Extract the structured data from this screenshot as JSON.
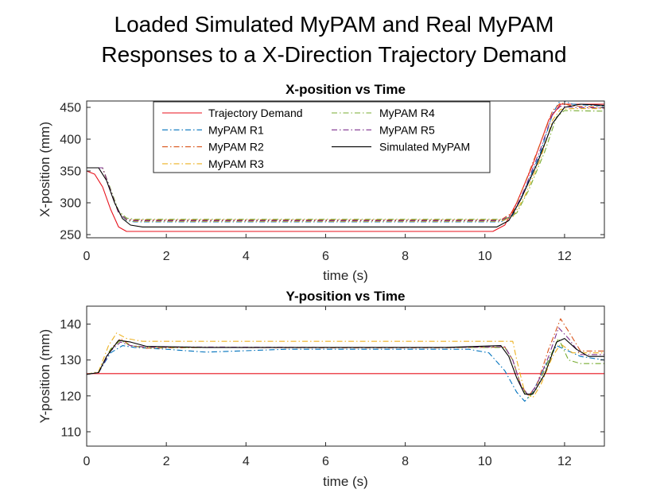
{
  "figure": {
    "title_line1": "Loaded Simulated MyPAM and Real MyPAM",
    "title_line2": "Responses to a X-Direction Trajectory Demand"
  },
  "colors": {
    "Trajectory Demand": "#e8121c",
    "MyPAM R1": "#0072bd",
    "MyPAM R2": "#d95319",
    "MyPAM R3": "#edb120",
    "MyPAM R4": "#77ac30",
    "MyPAM R5": "#7e2f8e",
    "Simulated MyPAM": "#000000"
  },
  "chart_data": [
    {
      "type": "line",
      "title": "X-position vs Time",
      "xlabel": "time (s)",
      "ylabel": "X-position (mm)",
      "xlim": [
        0,
        13
      ],
      "ylim": [
        245,
        460
      ],
      "xticks": [
        0,
        2,
        4,
        6,
        8,
        10,
        12
      ],
      "yticks": [
        250,
        300,
        350,
        400,
        450
      ],
      "grid": false,
      "legend": "top-center, two columns",
      "series": [
        {
          "name": "Trajectory Demand",
          "style": "solid",
          "points": [
            [
              0,
              350
            ],
            [
              0.2,
              345
            ],
            [
              0.4,
              325
            ],
            [
              0.6,
              290
            ],
            [
              0.8,
              262
            ],
            [
              1.0,
              255
            ],
            [
              10.2,
              255
            ],
            [
              10.5,
              265
            ],
            [
              10.8,
              300
            ],
            [
              11.2,
              360
            ],
            [
              11.6,
              430
            ],
            [
              11.9,
              455
            ],
            [
              13,
              455
            ]
          ]
        },
        {
          "name": "MyPAM R1",
          "style": "dashdot",
          "points": [
            [
              0,
              355
            ],
            [
              0.4,
              355
            ],
            [
              0.6,
              320
            ],
            [
              0.8,
              285
            ],
            [
              1.0,
              272
            ],
            [
              1.2,
              270
            ],
            [
              10.4,
              270
            ],
            [
              10.7,
              280
            ],
            [
              11.0,
              320
            ],
            [
              11.4,
              380
            ],
            [
              11.7,
              440
            ],
            [
              11.9,
              462
            ],
            [
              12.2,
              455
            ],
            [
              13,
              452
            ]
          ]
        },
        {
          "name": "MyPAM R2",
          "style": "dashdot",
          "points": [
            [
              0,
              355
            ],
            [
              0.4,
              355
            ],
            [
              0.6,
              318
            ],
            [
              0.8,
              284
            ],
            [
              1.0,
              274
            ],
            [
              1.2,
              273
            ],
            [
              10.4,
              273
            ],
            [
              10.7,
              285
            ],
            [
              11.0,
              330
            ],
            [
              11.4,
              395
            ],
            [
              11.7,
              445
            ],
            [
              11.9,
              457
            ],
            [
              12.2,
              452
            ],
            [
              13,
              450
            ]
          ]
        },
        {
          "name": "MyPAM R3",
          "style": "dashdot",
          "points": [
            [
              0,
              355
            ],
            [
              0.4,
              355
            ],
            [
              0.6,
              320
            ],
            [
              0.8,
              285
            ],
            [
              1.0,
              273
            ],
            [
              1.2,
              271
            ],
            [
              10.4,
              271
            ],
            [
              10.7,
              278
            ],
            [
              11.0,
              310
            ],
            [
              11.4,
              370
            ],
            [
              11.7,
              430
            ],
            [
              11.9,
              447
            ],
            [
              12.2,
              448
            ],
            [
              13,
              448
            ]
          ]
        },
        {
          "name": "MyPAM R4",
          "style": "dashdot",
          "points": [
            [
              0,
              355
            ],
            [
              0.4,
              355
            ],
            [
              0.6,
              322
            ],
            [
              0.8,
              287
            ],
            [
              1.0,
              276
            ],
            [
              1.2,
              274
            ],
            [
              10.5,
              274
            ],
            [
              10.8,
              284
            ],
            [
              11.1,
              320
            ],
            [
              11.5,
              380
            ],
            [
              11.8,
              435
            ],
            [
              12.0,
              445
            ],
            [
              13,
              444
            ]
          ]
        },
        {
          "name": "MyPAM R5",
          "style": "dashdot",
          "points": [
            [
              0,
              355
            ],
            [
              0.4,
              355
            ],
            [
              0.6,
              320
            ],
            [
              0.8,
              284
            ],
            [
              1.0,
              274
            ],
            [
              1.2,
              272
            ],
            [
              10.4,
              272
            ],
            [
              10.7,
              282
            ],
            [
              11.0,
              322
            ],
            [
              11.4,
              385
            ],
            [
              11.7,
              440
            ],
            [
              11.9,
              452
            ],
            [
              12.2,
              450
            ],
            [
              13,
              449
            ]
          ]
        },
        {
          "name": "Simulated MyPAM",
          "style": "solid",
          "points": [
            [
              0,
              355
            ],
            [
              0.3,
              355
            ],
            [
              0.5,
              335
            ],
            [
              0.7,
              300
            ],
            [
              0.9,
              275
            ],
            [
              1.1,
              265
            ],
            [
              1.4,
              262
            ],
            [
              10.3,
              262
            ],
            [
              10.6,
              272
            ],
            [
              10.9,
              305
            ],
            [
              11.3,
              360
            ],
            [
              11.7,
              425
            ],
            [
              12.0,
              450
            ],
            [
              12.4,
              455
            ],
            [
              13,
              453
            ]
          ]
        }
      ]
    },
    {
      "type": "line",
      "title": "Y-position vs Time",
      "xlabel": "time (s)",
      "ylabel": "Y-position (mm)",
      "xlim": [
        0,
        13
      ],
      "ylim": [
        106,
        145
      ],
      "xticks": [
        0,
        2,
        4,
        6,
        8,
        10,
        12
      ],
      "yticks": [
        110,
        120,
        130,
        140
      ],
      "grid": false,
      "series": [
        {
          "name": "Trajectory Demand",
          "style": "solid",
          "points": [
            [
              0,
              126.2
            ],
            [
              13,
              126.2
            ]
          ]
        },
        {
          "name": "MyPAM R1",
          "style": "dashdot",
          "points": [
            [
              0,
              126
            ],
            [
              0.3,
              126.5
            ],
            [
              0.6,
              132
            ],
            [
              0.9,
              134
            ],
            [
              1.2,
              133.5
            ],
            [
              2,
              133
            ],
            [
              3,
              132.2
            ],
            [
              5,
              133
            ],
            [
              8,
              133
            ],
            [
              9.6,
              133
            ],
            [
              10.1,
              132
            ],
            [
              10.5,
              127
            ],
            [
              10.8,
              121
            ],
            [
              11.0,
              118.5
            ],
            [
              11.2,
              121
            ],
            [
              11.5,
              128
            ],
            [
              11.8,
              134
            ],
            [
              12.0,
              133
            ],
            [
              12.4,
              131
            ],
            [
              13,
              130
            ]
          ]
        },
        {
          "name": "MyPAM R2",
          "style": "dashdot",
          "points": [
            [
              0,
              126
            ],
            [
              0.3,
              126.5
            ],
            [
              0.6,
              133
            ],
            [
              0.85,
              136
            ],
            [
              1.1,
              134
            ],
            [
              1.5,
              133.3
            ],
            [
              3,
              133.5
            ],
            [
              6,
              133.4
            ],
            [
              9,
              133.4
            ],
            [
              10.5,
              133.6
            ],
            [
              10.7,
              130
            ],
            [
              10.9,
              123
            ],
            [
              11.1,
              120
            ],
            [
              11.3,
              123
            ],
            [
              11.6,
              133
            ],
            [
              11.9,
              141.5
            ],
            [
              12.1,
              138
            ],
            [
              12.4,
              132.5
            ],
            [
              13,
              132.5
            ]
          ]
        },
        {
          "name": "MyPAM R3",
          "style": "dashdot",
          "points": [
            [
              0,
              126
            ],
            [
              0.3,
              126.8
            ],
            [
              0.55,
              134
            ],
            [
              0.75,
              137.5
            ],
            [
              1.0,
              136
            ],
            [
              1.4,
              135.2
            ],
            [
              3,
              135.2
            ],
            [
              6,
              135.2
            ],
            [
              9,
              135.2
            ],
            [
              10.7,
              135.2
            ],
            [
              10.8,
              130
            ],
            [
              11.0,
              121
            ],
            [
              11.2,
              119.5
            ],
            [
              11.4,
              123
            ],
            [
              11.7,
              131
            ],
            [
              11.9,
              134.5
            ],
            [
              12.2,
              132
            ],
            [
              13,
              132
            ]
          ]
        },
        {
          "name": "MyPAM R4",
          "style": "dashdot",
          "points": [
            [
              0,
              126
            ],
            [
              0.3,
              126.6
            ],
            [
              0.6,
              133
            ],
            [
              0.85,
              135.5
            ],
            [
              1.1,
              134
            ],
            [
              1.5,
              133.5
            ],
            [
              3,
              133.5
            ],
            [
              6,
              133.5
            ],
            [
              9,
              133.5
            ],
            [
              10.5,
              133.5
            ],
            [
              10.7,
              130
            ],
            [
              10.9,
              123
            ],
            [
              11.1,
              119.5
            ],
            [
              11.3,
              122
            ],
            [
              11.6,
              130
            ],
            [
              11.85,
              136
            ],
            [
              12.1,
              130
            ],
            [
              12.4,
              129
            ],
            [
              13,
              129
            ]
          ]
        },
        {
          "name": "MyPAM R5",
          "style": "dashdot",
          "points": [
            [
              0,
              126
            ],
            [
              0.3,
              126.5
            ],
            [
              0.6,
              132.5
            ],
            [
              0.85,
              135
            ],
            [
              1.1,
              134
            ],
            [
              1.5,
              133.6
            ],
            [
              3,
              133.6
            ],
            [
              6,
              133.5
            ],
            [
              9,
              133.5
            ],
            [
              10.5,
              133.7
            ],
            [
              10.7,
              130
            ],
            [
              10.9,
              123
            ],
            [
              11.1,
              120
            ],
            [
              11.3,
              123
            ],
            [
              11.6,
              131
            ],
            [
              11.85,
              139
            ],
            [
              12.1,
              136
            ],
            [
              12.4,
              131.5
            ],
            [
              13,
              131.5
            ]
          ]
        },
        {
          "name": "Simulated MyPAM",
          "style": "solid",
          "points": [
            [
              0,
              126
            ],
            [
              0.3,
              126.5
            ],
            [
              0.5,
              131
            ],
            [
              0.8,
              135.5
            ],
            [
              1.1,
              135
            ],
            [
              1.5,
              133.8
            ],
            [
              3,
              133.5
            ],
            [
              6,
              133.5
            ],
            [
              9,
              133.5
            ],
            [
              10.4,
              134
            ],
            [
              10.6,
              131
            ],
            [
              10.8,
              125
            ],
            [
              11.0,
              120.5
            ],
            [
              11.2,
              120.5
            ],
            [
              11.5,
              126
            ],
            [
              11.8,
              135
            ],
            [
              12.0,
              136
            ],
            [
              12.3,
              133
            ],
            [
              12.6,
              131
            ],
            [
              13,
              131
            ]
          ]
        }
      ]
    }
  ]
}
